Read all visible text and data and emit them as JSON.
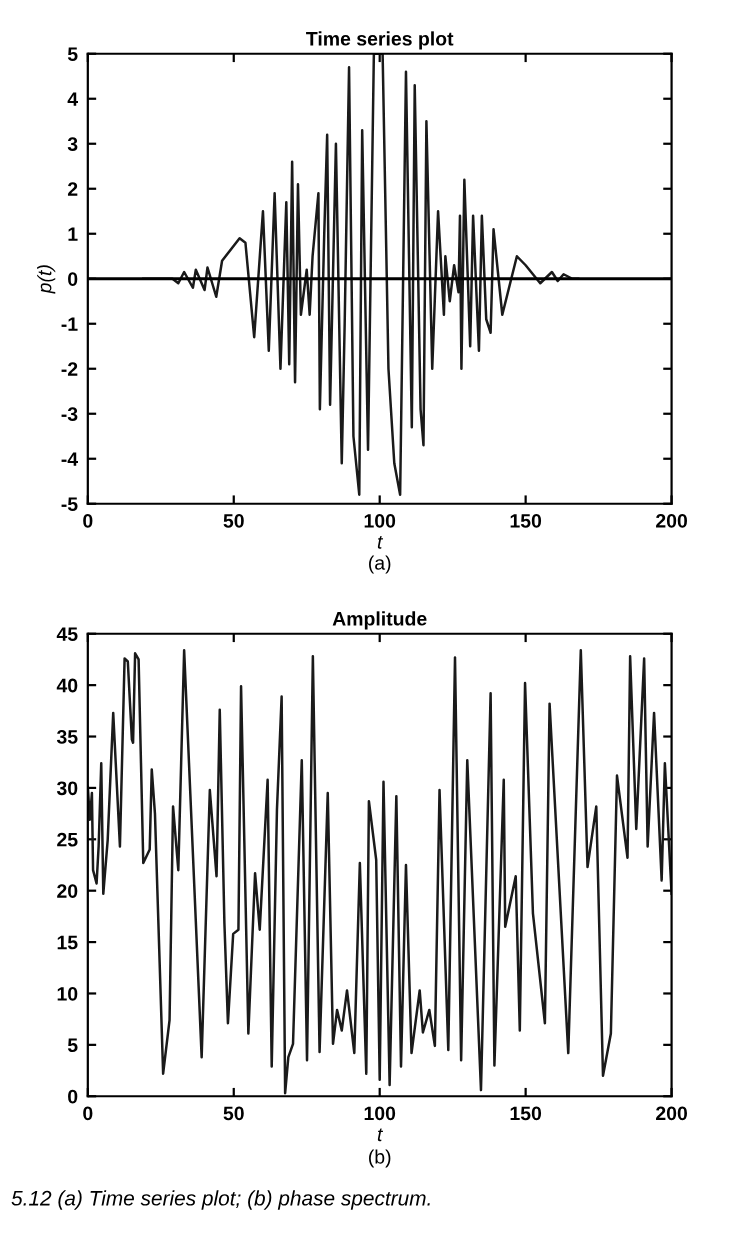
{
  "chart_data": [
    {
      "type": "line",
      "title": "Time series plot",
      "xlabel": "t",
      "ylabel": "p(t)",
      "annotations": [
        "(a)"
      ],
      "xlim": [
        0,
        200
      ],
      "xticks": [
        0,
        50,
        100,
        150,
        200
      ],
      "ylim": [
        -5,
        5
      ],
      "yticks": [
        -5,
        -4,
        -3,
        -2,
        -1,
        0,
        1,
        2,
        3,
        4,
        5
      ],
      "grid": false,
      "ref_lines": [
        {
          "axis": "y",
          "value": 0,
          "color": "#000000"
        }
      ],
      "series": [
        {
          "color": "#1a1a1a",
          "x": [
            19,
            29,
            31,
            33,
            36,
            37,
            40,
            41,
            44,
            46,
            52,
            54,
            57,
            60,
            62,
            64,
            66,
            68,
            69,
            70,
            71,
            72,
            73,
            75,
            76,
            77,
            79,
            79.5,
            81,
            82,
            83,
            85,
            87,
            88,
            89.5,
            91,
            93,
            94,
            96,
            98,
            101,
            103,
            105,
            107,
            109,
            111,
            112,
            114,
            115,
            116,
            118,
            120,
            122,
            122.5,
            124,
            125.5,
            127,
            127.5,
            128,
            129,
            131,
            132,
            134,
            135,
            136.5,
            138,
            139,
            142,
            147,
            150,
            155,
            159,
            161,
            163,
            166,
            168
          ],
          "values": [
            0,
            0,
            -0.1,
            0.15,
            -0.2,
            0.2,
            -0.25,
            0.25,
            -0.4,
            0.4,
            0.9,
            0.8,
            -1.3,
            1.5,
            -1.6,
            1.9,
            -2.0,
            1.7,
            -1.9,
            2.6,
            -2.3,
            2.1,
            -0.8,
            0.2,
            -0.8,
            0.5,
            1.9,
            -2.9,
            1.0,
            3.2,
            -2.8,
            3.0,
            -4.1,
            -1.0,
            4.7,
            -3.5,
            -4.8,
            3.3,
            -3.8,
            5.0,
            5.0,
            -2.0,
            -4.1,
            -4.8,
            4.6,
            -3.3,
            4.3,
            -2.9,
            -3.7,
            3.5,
            -2.0,
            1.5,
            -0.8,
            0.5,
            -0.5,
            0.3,
            -0.3,
            1.4,
            -2.0,
            2.2,
            -1.5,
            1.4,
            -1.6,
            1.4,
            -0.9,
            -1.2,
            1.1,
            -0.8,
            0.5,
            0.3,
            -0.1,
            0.15,
            -0.05,
            0.1,
            0,
            0
          ]
        }
      ]
    },
    {
      "type": "line",
      "title": "Amplitude",
      "xlabel": "t",
      "annotations": [
        "(b)",
        "5.12 (a) Time series plot; (b) phase spectrum."
      ],
      "xlim": [
        0,
        200
      ],
      "xticks": [
        0,
        50,
        100,
        150,
        200
      ],
      "ylim": [
        0,
        45
      ],
      "yticks": [
        0,
        5,
        10,
        15,
        20,
        25,
        30,
        35,
        40,
        45
      ],
      "grid": false,
      "series": [
        {
          "color": "#1a1a1a",
          "x": [
            0,
            0.7,
            1.4,
            1.8,
            3,
            3.7,
            4.6,
            5.3,
            6.8,
            8.7,
            11,
            12.6,
            13.7,
            15.1,
            15.5,
            16.2,
            17.4,
            19,
            21.2,
            21.9,
            23,
            25.8,
            28,
            29.2,
            31,
            33,
            39,
            41.8,
            44.1,
            45.2,
            46.8,
            48,
            49.8,
            51.6,
            52.5,
            55,
            57.3,
            58.9,
            61.6,
            63,
            64.8,
            66.4,
            67.6,
            68.7,
            70.3,
            73.3,
            75.1,
            77.1,
            79.4,
            82.2,
            84,
            85.4,
            87,
            88.8,
            91.3,
            93.2,
            95.4,
            96.3,
            98.8,
            100,
            101.3,
            103.4,
            105.7,
            107.3,
            109,
            110.9,
            113.7,
            114.8,
            117,
            118.9,
            120.5,
            123.5,
            125.8,
            127.9,
            130,
            134.7,
            138,
            139.3,
            142.5,
            143,
            146.6,
            148,
            149.8,
            152.5,
            156.6,
            158.2,
            164.6,
            168.9,
            171.2,
            174.2,
            176.5,
            179.2,
            181.3,
            184.9,
            185.8,
            187.9,
            190.6,
            191.8,
            194,
            196.6,
            197.7,
            200
          ],
          "values": [
            30.1,
            26.9,
            29.5,
            22,
            20.7,
            24.3,
            32.4,
            19.7,
            24.9,
            37.3,
            24.3,
            42.6,
            42.3,
            34.7,
            34.4,
            43.1,
            42.5,
            22.7,
            24,
            31.8,
            27.5,
            2.2,
            7.4,
            28.2,
            22,
            43.4,
            3.8,
            29.8,
            21.4,
            37.6,
            16.8,
            7.1,
            15.8,
            16.2,
            39.9,
            6.1,
            21.7,
            16.2,
            30.8,
            2.9,
            27.9,
            38.9,
            0.3,
            3.8,
            5.1,
            32.7,
            3.5,
            42.8,
            4.3,
            29.5,
            5.1,
            8.4,
            6.4,
            10.3,
            4.2,
            22.7,
            2.2,
            28.7,
            23,
            1.6,
            30.6,
            1.1,
            29.2,
            2.9,
            22.5,
            4.2,
            10.3,
            6.2,
            8.4,
            4.9,
            29.8,
            4.5,
            42.7,
            3.5,
            32.7,
            0.6,
            39.2,
            3,
            30.8,
            16.5,
            21.4,
            6.4,
            40.2,
            17.8,
            7.1,
            38.2,
            4.2,
            43.4,
            22.3,
            28.2,
            2,
            6.1,
            31.2,
            23.2,
            42.8,
            26,
            42.6,
            24.3,
            37.3,
            21,
            32.4,
            19.7
          ]
        }
      ]
    }
  ]
}
